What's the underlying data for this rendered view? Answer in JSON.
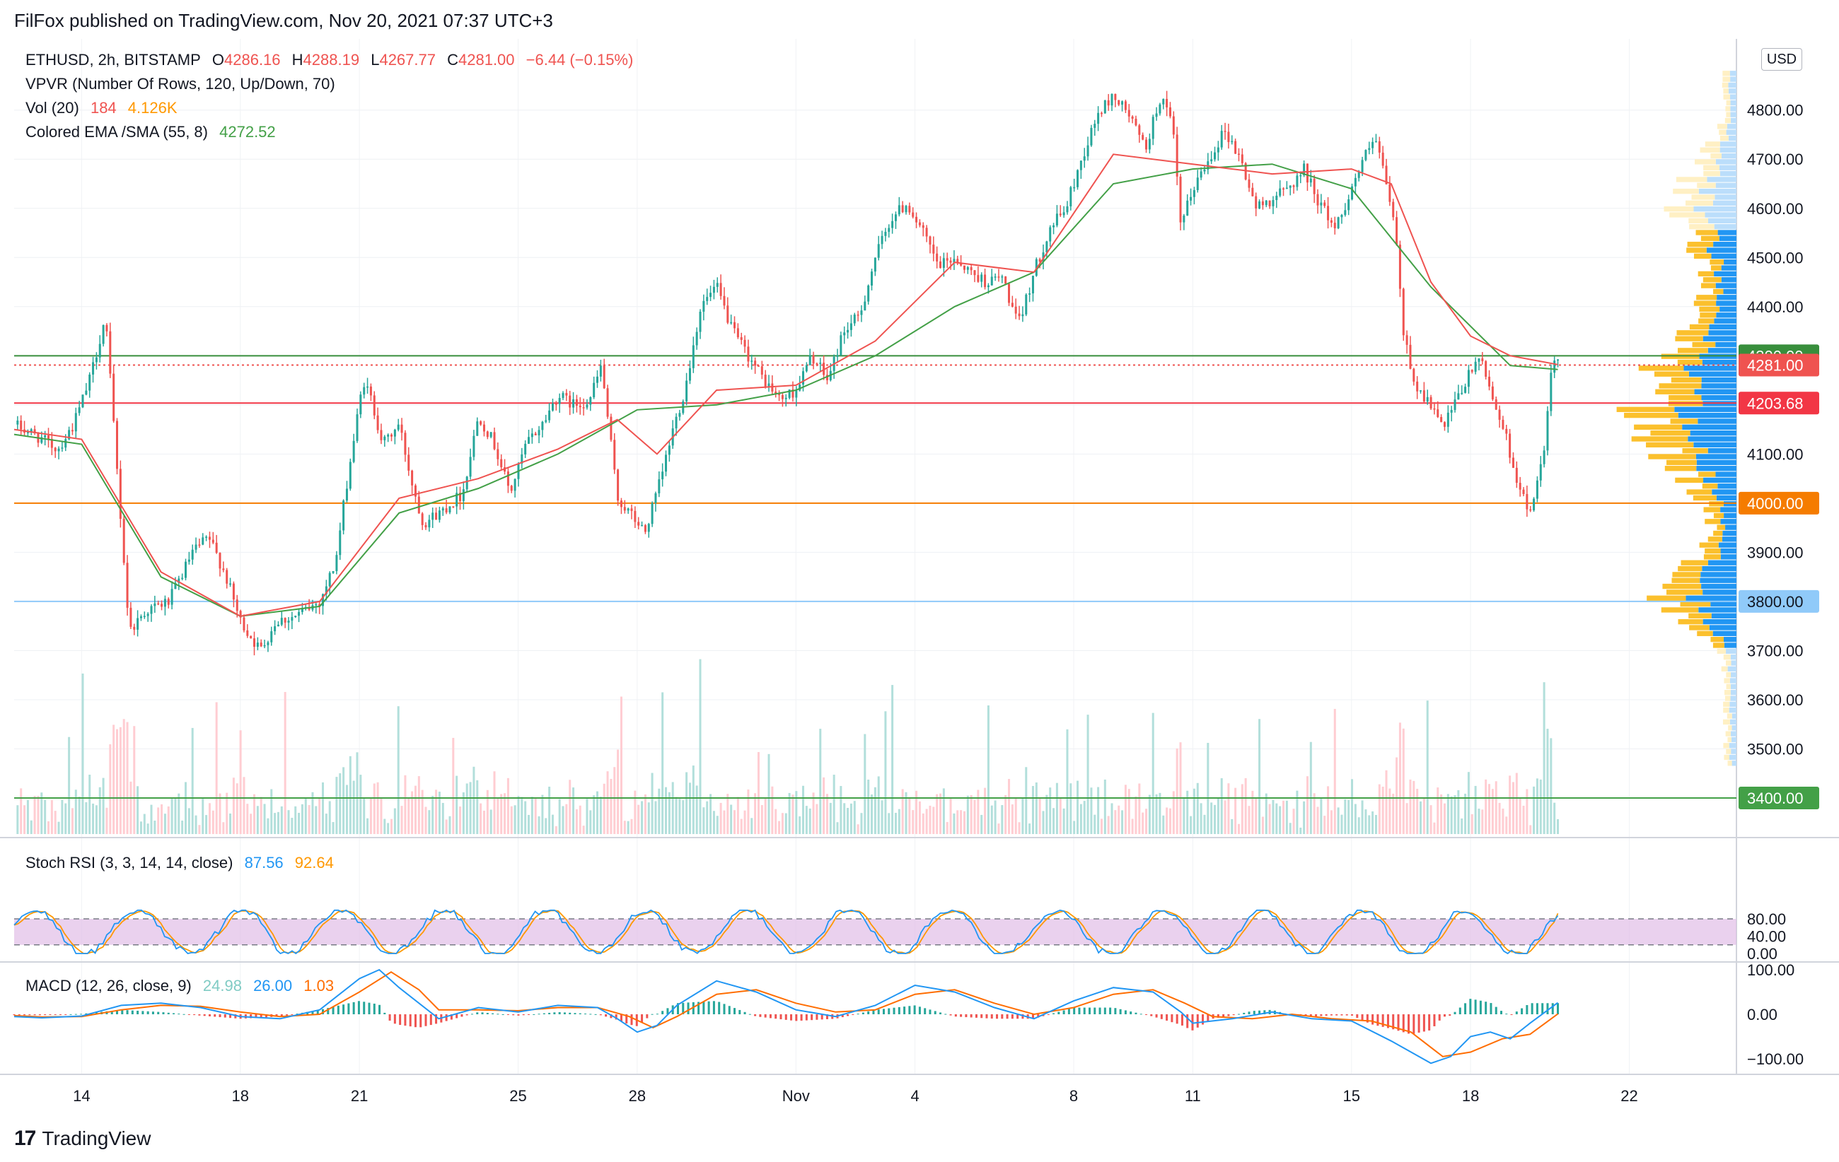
{
  "header": {
    "text": "FilFox published on TradingView.com, Nov 20, 2021 07:37 UTC+3"
  },
  "legend": {
    "symbol": "ETHUSD, 2h, BITSTAMP",
    "o_label": "O",
    "o_val": "4286.16",
    "h_label": "H",
    "h_val": "4288.19",
    "l_label": "L",
    "l_val": "4267.77",
    "c_label": "C",
    "c_val": "4281.00",
    "change": "−6.44 (−0.15%)",
    "vpvr": "VPVR (Number Of Rows, 120, Up/Down, 70)",
    "vol_label": "Vol (20)",
    "vol_val1": "184",
    "vol_val2": "4.126K",
    "ema_label": "Colored EMA /SMA (55, 8)",
    "ema_val": "4272.52",
    "stoch_label": "Stoch RSI (3, 3, 14, 14, close)",
    "stoch_k": "87.56",
    "stoch_d": "92.64",
    "macd_label": "MACD (12, 26, close, 9)",
    "macd_hist": "24.98",
    "macd_line": "26.00",
    "macd_signal": "1.03"
  },
  "currency_badge": "USD",
  "footer": {
    "logo_text": "TradingView",
    "logo_mark": "17"
  },
  "colors": {
    "up": "#26a69a",
    "down": "#ef5350",
    "ema": "#43a047",
    "sma": "#ef5350",
    "stoch_k": "#2196f3",
    "stoch_d": "#ff9800",
    "stoch_band": "#e1bee7",
    "vp_up": "#2196f3",
    "vp_down": "#fbc02d"
  },
  "chart_data": [
    {
      "type": "candlestick",
      "title": "ETHUSD, 2h, BITSTAMP",
      "ylim": [
        3340,
        4900
      ],
      "y_ticks": [
        "3400.00",
        "3500.00",
        "3600.00",
        "3700.00",
        "3800.00",
        "3900.00",
        "4000.00",
        "4100.00",
        "4200.00",
        "4300.00",
        "4400.00",
        "4500.00",
        "4600.00",
        "4700.00",
        "4800.00"
      ],
      "y_tick_values": [
        3400,
        3500,
        3600,
        3700,
        3800,
        3900,
        4000,
        4100,
        4200,
        4300,
        4400,
        4500,
        4600,
        4700,
        4800
      ],
      "x_ticks": [
        "14",
        "18",
        "21",
        "25",
        "28",
        "Nov",
        "4",
        "8",
        "11",
        "15",
        "18",
        "22"
      ],
      "x_tick_values": [
        14,
        18,
        21,
        25,
        28,
        32,
        35,
        39,
        42,
        46,
        49,
        53
      ],
      "x_unit": "day index (Oct 1 = 1, Nov 1 = 32)",
      "xlim": [
        12.3,
        55.7
      ],
      "last_day": 51.2,
      "anchors": [
        [
          12.3,
          4160
        ],
        [
          12.8,
          4140
        ],
        [
          13.4,
          4110
        ],
        [
          13.8,
          4160
        ],
        [
          14.2,
          4250
        ],
        [
          14.6,
          4380
        ],
        [
          15.2,
          3740
        ],
        [
          15.6,
          3780
        ],
        [
          16.2,
          3800
        ],
        [
          16.8,
          3900
        ],
        [
          17.2,
          3930
        ],
        [
          17.6,
          3860
        ],
        [
          18.0,
          3760
        ],
        [
          18.5,
          3700
        ],
        [
          18.9,
          3760
        ],
        [
          19.4,
          3770
        ],
        [
          20.0,
          3800
        ],
        [
          20.4,
          3880
        ],
        [
          20.7,
          4050
        ],
        [
          20.9,
          4150
        ],
        [
          21.1,
          4250
        ],
        [
          21.3,
          4210
        ],
        [
          21.6,
          4120
        ],
        [
          22.0,
          4160
        ],
        [
          22.3,
          4050
        ],
        [
          22.6,
          3960
        ],
        [
          23.0,
          3980
        ],
        [
          23.6,
          4020
        ],
        [
          24.0,
          4180
        ],
        [
          24.4,
          4120
        ],
        [
          24.8,
          4020
        ],
        [
          25.2,
          4120
        ],
        [
          25.6,
          4160
        ],
        [
          26.0,
          4220
        ],
        [
          26.4,
          4200
        ],
        [
          26.8,
          4210
        ],
        [
          27.1,
          4280
        ],
        [
          27.5,
          4010
        ],
        [
          27.9,
          3970
        ],
        [
          28.2,
          3940
        ],
        [
          28.6,
          4050
        ],
        [
          28.9,
          4150
        ],
        [
          29.2,
          4230
        ],
        [
          29.6,
          4400
        ],
        [
          30.0,
          4440
        ],
        [
          30.4,
          4350
        ],
        [
          30.8,
          4300
        ],
        [
          31.2,
          4250
        ],
        [
          31.6,
          4210
        ],
        [
          32.0,
          4230
        ],
        [
          32.4,
          4300
        ],
        [
          32.8,
          4250
        ],
        [
          33.2,
          4350
        ],
        [
          33.6,
          4380
        ],
        [
          34.0,
          4500
        ],
        [
          34.4,
          4580
        ],
        [
          34.8,
          4610
        ],
        [
          35.2,
          4550
        ],
        [
          35.6,
          4480
        ],
        [
          36.0,
          4500
        ],
        [
          36.4,
          4470
        ],
        [
          36.8,
          4450
        ],
        [
          37.2,
          4460
        ],
        [
          37.6,
          4360
        ],
        [
          38.0,
          4470
        ],
        [
          38.4,
          4560
        ],
        [
          38.8,
          4600
        ],
        [
          39.2,
          4700
        ],
        [
          39.6,
          4790
        ],
        [
          40.0,
          4830
        ],
        [
          40.4,
          4790
        ],
        [
          40.8,
          4720
        ],
        [
          41.2,
          4830
        ],
        [
          41.5,
          4760
        ],
        [
          41.7,
          4560
        ],
        [
          42.0,
          4640
        ],
        [
          42.4,
          4700
        ],
        [
          42.8,
          4760
        ],
        [
          43.2,
          4700
        ],
        [
          43.6,
          4600
        ],
        [
          44.0,
          4620
        ],
        [
          44.4,
          4640
        ],
        [
          44.8,
          4680
        ],
        [
          45.2,
          4610
        ],
        [
          45.6,
          4560
        ],
        [
          46.0,
          4640
        ],
        [
          46.3,
          4700
        ],
        [
          46.6,
          4740
        ],
        [
          46.9,
          4640
        ],
        [
          47.1,
          4560
        ],
        [
          47.3,
          4350
        ],
        [
          47.6,
          4240
        ],
        [
          48.0,
          4200
        ],
        [
          48.3,
          4150
        ],
        [
          48.6,
          4200
        ],
        [
          48.9,
          4250
        ],
        [
          49.2,
          4300
        ],
        [
          49.5,
          4230
        ],
        [
          49.8,
          4160
        ],
        [
          50.1,
          4070
        ],
        [
          50.4,
          3990
        ],
        [
          50.6,
          4000
        ],
        [
          50.9,
          4140
        ],
        [
          51.0,
          4240
        ],
        [
          51.1,
          4290
        ],
        [
          51.2,
          4281
        ]
      ],
      "ema": [
        [
          12.3,
          4140
        ],
        [
          14,
          4120
        ],
        [
          16,
          3850
        ],
        [
          18,
          3770
        ],
        [
          20,
          3790
        ],
        [
          22,
          3980
        ],
        [
          24,
          4030
        ],
        [
          26,
          4100
        ],
        [
          28,
          4190
        ],
        [
          30,
          4200
        ],
        [
          32,
          4230
        ],
        [
          34,
          4300
        ],
        [
          36,
          4400
        ],
        [
          38,
          4470
        ],
        [
          40,
          4650
        ],
        [
          42,
          4680
        ],
        [
          44,
          4690
        ],
        [
          46,
          4640
        ],
        [
          48,
          4440
        ],
        [
          50,
          4280
        ],
        [
          51.2,
          4272
        ]
      ],
      "sma": [
        [
          12.3,
          4150
        ],
        [
          14,
          4130
        ],
        [
          16,
          3860
        ],
        [
          18,
          3770
        ],
        [
          20,
          3800
        ],
        [
          22,
          4010
        ],
        [
          24,
          4050
        ],
        [
          26,
          4110
        ],
        [
          27.5,
          4170
        ],
        [
          28.5,
          4100
        ],
        [
          30,
          4230
        ],
        [
          32,
          4240
        ],
        [
          34,
          4330
        ],
        [
          36,
          4490
        ],
        [
          38,
          4470
        ],
        [
          40,
          4710
        ],
        [
          42,
          4690
        ],
        [
          44,
          4670
        ],
        [
          46,
          4680
        ],
        [
          47,
          4650
        ],
        [
          48,
          4450
        ],
        [
          49,
          4340
        ],
        [
          50,
          4300
        ],
        [
          51.2,
          4282
        ]
      ],
      "levels": [
        {
          "value": 4300,
          "label": "4300.00",
          "color": "#388e3c"
        },
        {
          "value": 4281,
          "label": "4281.00",
          "color": "#ef5350"
        },
        {
          "value": 4203.68,
          "label": "4203.68",
          "color": "#f23645"
        },
        {
          "value": 4000,
          "label": "4000.00",
          "color": "#f57c00"
        },
        {
          "value": 3800,
          "label": "3800.00",
          "color": "#90caf9"
        },
        {
          "value": 3400,
          "label": "3400.00",
          "color": "#43a047"
        }
      ]
    },
    {
      "type": "bar",
      "title": "Vol (20)",
      "last_values": [
        184,
        4126
      ]
    },
    {
      "type": "line",
      "title": "Stoch RSI (3, 3, 14, 14, close)",
      "ylim": [
        0,
        100
      ],
      "y_ticks": [
        "0.00",
        "40.00",
        "80.00"
      ],
      "y_tick_values": [
        0,
        40,
        80
      ],
      "band": [
        20,
        80
      ],
      "series": [
        {
          "name": "K",
          "last": 87.56
        },
        {
          "name": "D",
          "last": 92.64
        }
      ]
    },
    {
      "type": "line",
      "title": "MACD (12, 26, close, 9)",
      "ylim": [
        -115,
        120
      ],
      "y_ticks": [
        "100.00",
        "0.00",
        "−100.00"
      ],
      "y_tick_values": [
        100,
        0,
        -100
      ],
      "macd": [
        [
          12.3,
          -5
        ],
        [
          13,
          -8
        ],
        [
          14,
          -4
        ],
        [
          15,
          20
        ],
        [
          16,
          25
        ],
        [
          17,
          15
        ],
        [
          18,
          -5
        ],
        [
          19,
          -10
        ],
        [
          20,
          10
        ],
        [
          21,
          80
        ],
        [
          21.5,
          100
        ],
        [
          22,
          60
        ],
        [
          23,
          -10
        ],
        [
          24,
          15
        ],
        [
          25,
          5
        ],
        [
          26,
          20
        ],
        [
          27,
          15
        ],
        [
          27.5,
          -10
        ],
        [
          28,
          -40
        ],
        [
          28.5,
          -25
        ],
        [
          29,
          20
        ],
        [
          30,
          75
        ],
        [
          31,
          50
        ],
        [
          32,
          10
        ],
        [
          33,
          -5
        ],
        [
          34,
          20
        ],
        [
          35,
          65
        ],
        [
          36,
          50
        ],
        [
          37,
          15
        ],
        [
          38,
          -10
        ],
        [
          39,
          30
        ],
        [
          40,
          60
        ],
        [
          41,
          50
        ],
        [
          41.7,
          5
        ],
        [
          42,
          -20
        ],
        [
          43,
          -10
        ],
        [
          44,
          5
        ],
        [
          45,
          -10
        ],
        [
          46,
          -15
        ],
        [
          47,
          -60
        ],
        [
          48,
          -110
        ],
        [
          48.5,
          -95
        ],
        [
          49,
          -50
        ],
        [
          49.5,
          -40
        ],
        [
          50,
          -55
        ],
        [
          50.5,
          -20
        ],
        [
          51.2,
          26
        ]
      ],
      "signal": [
        [
          12.3,
          -3
        ],
        [
          13,
          -6
        ],
        [
          14,
          -5
        ],
        [
          15,
          10
        ],
        [
          16,
          20
        ],
        [
          17,
          18
        ],
        [
          18,
          5
        ],
        [
          19,
          -5
        ],
        [
          20,
          0
        ],
        [
          21,
          50
        ],
        [
          21.8,
          95
        ],
        [
          22.5,
          55
        ],
        [
          23,
          10
        ],
        [
          24,
          10
        ],
        [
          25,
          8
        ],
        [
          26,
          15
        ],
        [
          27,
          15
        ],
        [
          27.8,
          -5
        ],
        [
          28.4,
          -30
        ],
        [
          29,
          -5
        ],
        [
          30,
          45
        ],
        [
          31,
          55
        ],
        [
          32,
          25
        ],
        [
          33,
          5
        ],
        [
          34,
          10
        ],
        [
          35,
          45
        ],
        [
          36,
          55
        ],
        [
          37,
          25
        ],
        [
          38,
          0
        ],
        [
          39,
          15
        ],
        [
          40,
          45
        ],
        [
          41,
          55
        ],
        [
          41.8,
          25
        ],
        [
          42.5,
          -5
        ],
        [
          43.5,
          -10
        ],
        [
          44.5,
          0
        ],
        [
          45.5,
          -10
        ],
        [
          46.5,
          -15
        ],
        [
          47.5,
          -40
        ],
        [
          48.3,
          -95
        ],
        [
          49,
          -85
        ],
        [
          49.8,
          -55
        ],
        [
          50.5,
          -45
        ],
        [
          51.2,
          1
        ]
      ]
    }
  ]
}
